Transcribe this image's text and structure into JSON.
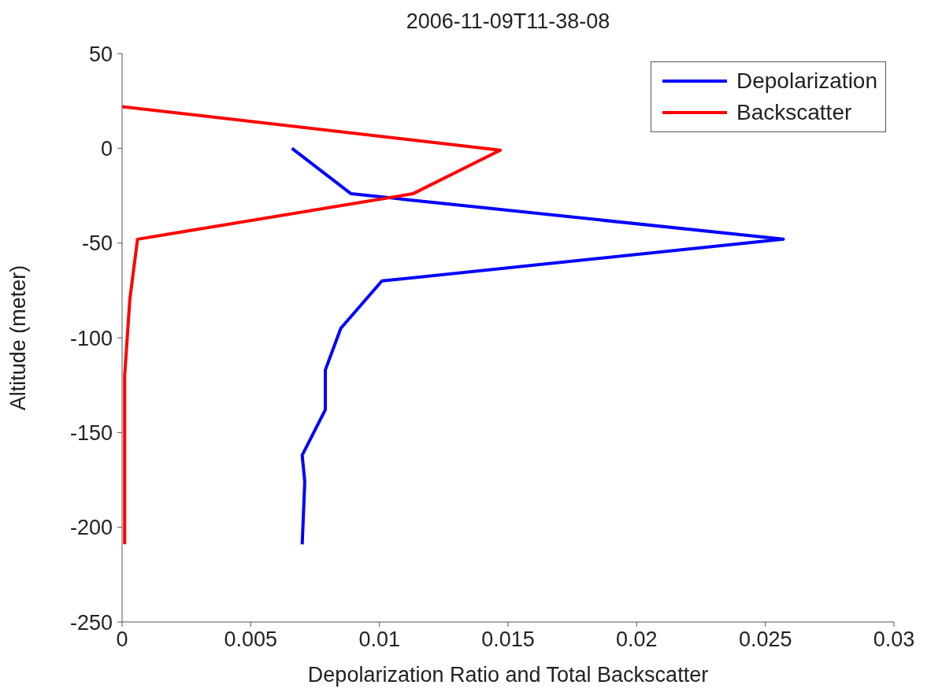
{
  "chart_data": {
    "type": "line",
    "title": "2006-11-09T11-38-08",
    "xlabel": "Depolarization Ratio and Total Backscatter",
    "ylabel": "Altitude (meter)",
    "series": [
      {
        "name": "Depolarization",
        "color": "#0000ff",
        "x": [
          0.0066,
          0.0089,
          0.0257,
          0.0101,
          0.0085,
          0.0079,
          0.0079,
          0.007,
          0.0071,
          0.007
        ],
        "values": [
          0,
          -24,
          -48,
          -70,
          -95,
          -117,
          -138,
          -162,
          -176,
          -209
        ]
      },
      {
        "name": "Backscatter",
        "color": "#ff0000",
        "x": [
          0,
          0.0147,
          0.0113,
          0.0006,
          0.0003,
          0.0001,
          0.0001
        ],
        "values": [
          22,
          -1,
          -24,
          -48,
          -80,
          -120,
          -209
        ]
      }
    ],
    "xlim": [
      0,
      0.03
    ],
    "xticks": [
      0,
      0.005,
      0.01,
      0.015,
      0.02,
      0.025,
      0.03
    ],
    "ylim": [
      -250,
      50
    ],
    "yticks": [
      -250,
      -200,
      -150,
      -100,
      -50,
      0,
      50
    ],
    "grid": false,
    "legend": "top right",
    "marker": "none",
    "line_style": "solid"
  }
}
